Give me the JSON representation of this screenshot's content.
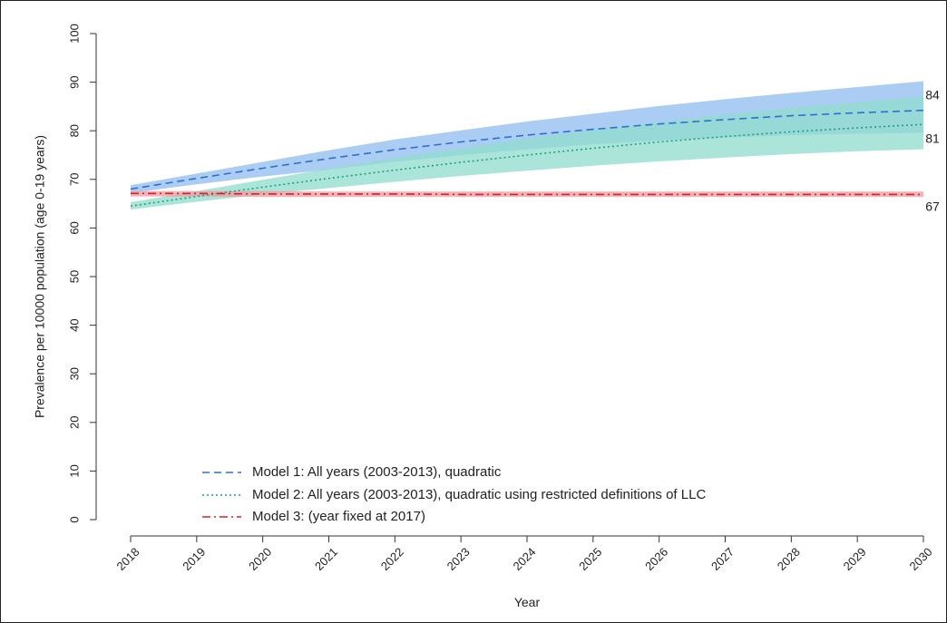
{
  "chart_data": {
    "type": "line",
    "xlabel": "Year",
    "ylabel": "Prevalence per 10000 population (age 0-19 years)",
    "xlim": [
      2018,
      2030
    ],
    "ylim": [
      0,
      100
    ],
    "x_ticks": [
      "2018",
      "2019",
      "2020",
      "2021",
      "2022",
      "2023",
      "2024",
      "2025",
      "2026",
      "2027",
      "2028",
      "2029",
      "2030"
    ],
    "y_ticks": [
      "0",
      "10",
      "20",
      "30",
      "40",
      "50",
      "60",
      "70",
      "80",
      "90",
      "100"
    ],
    "x": [
      2018,
      2019,
      2020,
      2021,
      2022,
      2023,
      2024,
      2025,
      2026,
      2027,
      2028,
      2029,
      2030
    ],
    "series": [
      {
        "name": "Model 1: All years (2003-2013), quadratic",
        "style": "dashed",
        "color": "#2e6fd1",
        "band_color": "#8fbcf0",
        "values": [
          68,
          70.2,
          72.3,
          74.3,
          76.1,
          77.7,
          79.1,
          80.3,
          81.4,
          82.3,
          83.1,
          83.7,
          84.2
        ],
        "lower": [
          67.2,
          69.0,
          70.6,
          72.0,
          73.6,
          75.0,
          76.2,
          77.2,
          78.0,
          78.6,
          79.1,
          79.4,
          79.6
        ],
        "upper": [
          68.8,
          71.2,
          73.6,
          76.0,
          78.2,
          80.1,
          81.9,
          83.5,
          85.1,
          86.5,
          87.8,
          89.0,
          90.2
        ]
      },
      {
        "name": "Model 2: All years (2003-2013), quadratic using restricted definitions of LLC",
        "style": "dotted",
        "color": "#1aa37a",
        "band_color": "#8fdccc",
        "values": [
          64.5,
          66.5,
          68.4,
          70.2,
          71.9,
          73.5,
          75.0,
          76.4,
          77.7,
          78.8,
          79.8,
          80.6,
          81.3
        ],
        "lower": [
          63.8,
          65.4,
          66.9,
          68.2,
          69.5,
          70.7,
          71.8,
          72.8,
          73.7,
          74.5,
          75.2,
          75.8,
          76.2
        ],
        "upper": [
          65.3,
          67.6,
          69.9,
          72.2,
          74.4,
          76.4,
          78.4,
          80.2,
          81.8,
          83.3,
          84.7,
          85.9,
          87.0
        ]
      },
      {
        "name": "Model 3: (year fixed at 2017)",
        "style": "dash-dot",
        "color": "#d81f2a",
        "band_color": "#f19aa0",
        "values": [
          67.1,
          67.1,
          67.0,
          67.0,
          67.0,
          66.9,
          66.9,
          66.9,
          66.9,
          66.9,
          66.9,
          66.9,
          66.9
        ],
        "lower": [
          66.5,
          66.5,
          66.4,
          66.4,
          66.4,
          66.4,
          66.4,
          66.4,
          66.4,
          66.4,
          66.4,
          66.4,
          66.4
        ],
        "upper": [
          67.6,
          67.6,
          67.6,
          67.5,
          67.5,
          67.5,
          67.5,
          67.5,
          67.5,
          67.5,
          67.5,
          67.5,
          67.5
        ]
      }
    ],
    "end_labels": [
      "84",
      "81",
      "67"
    ],
    "legend": {
      "placement": "bottom-left",
      "entries": [
        "Model 1: All years (2003-2013), quadratic",
        "Model 2: All years (2003-2013), quadratic using restricted definitions of LLC",
        "Model 3: (year fixed at 2017)"
      ]
    },
    "grid": false
  }
}
